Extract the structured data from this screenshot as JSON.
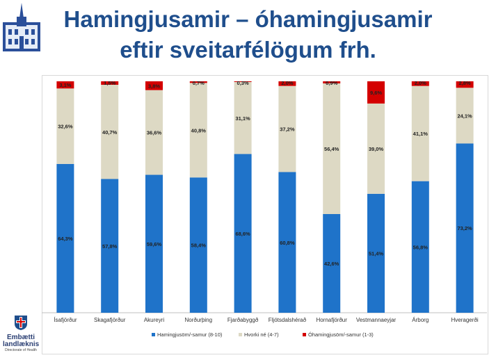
{
  "title_line1": "Hamingjusamir – óhamingjusamir",
  "title_line2": "eftir sveitarfélögum frh.",
  "footer_logo": {
    "line1": "Embætti",
    "line2": "landlæknis",
    "line3": "Directorate of Health"
  },
  "colors": {
    "title": "#1f4e8c",
    "happy": "#1f73c9",
    "neutral": "#ddd9c4",
    "unhappy": "#d40000"
  },
  "chart_data": {
    "type": "bar",
    "stacked": true,
    "normalized": true,
    "categories": [
      "Ísafjörður",
      "Skagafjörður",
      "Akureyri",
      "Norðurþing",
      "Fjarðabyggð",
      "Fljótsdalshérað",
      "Hornafjörður",
      "Vestmannaeyjar",
      "Árborg",
      "Hveragerði"
    ],
    "series": [
      {
        "name": "Hamingjusöm/-samur (8-10)",
        "color": "#1f73c9",
        "values": [
          64.3,
          57.8,
          59.6,
          58.4,
          68.6,
          60.8,
          42.6,
          51.4,
          56.8,
          73.2
        ],
        "labels": [
          "64,3%",
          "57,8%",
          "59,6%",
          "58,4%",
          "68,6%",
          "60,8%",
          "42,6%",
          "51,4%",
          "56,8%",
          "73,2%"
        ]
      },
      {
        "name": "Hvorki né (4-7)",
        "color": "#ddd9c4",
        "values": [
          32.6,
          40.7,
          36.6,
          40.8,
          31.1,
          37.2,
          56.4,
          39.0,
          41.1,
          24.1
        ],
        "labels": [
          "32,6%",
          "40,7%",
          "36,6%",
          "40,8%",
          "31,1%",
          "37,2%",
          "56,4%",
          "39,0%",
          "41,1%",
          "24,1%"
        ]
      },
      {
        "name": "Óhamingjusöm/-samur (1-3)",
        "color": "#d40000",
        "values": [
          3.1,
          1.5,
          3.8,
          0.7,
          0.3,
          2.0,
          0.9,
          9.6,
          2.0,
          2.8
        ],
        "labels": [
          "3,1%",
          "1,5%",
          "3,8%",
          "0,7%",
          "0,3%",
          "2,0%",
          "0,9%",
          "9,6%",
          "2,0%",
          "2,8%"
        ]
      }
    ],
    "ylim": [
      0,
      100
    ],
    "grid": false,
    "legend_position": "bottom"
  }
}
